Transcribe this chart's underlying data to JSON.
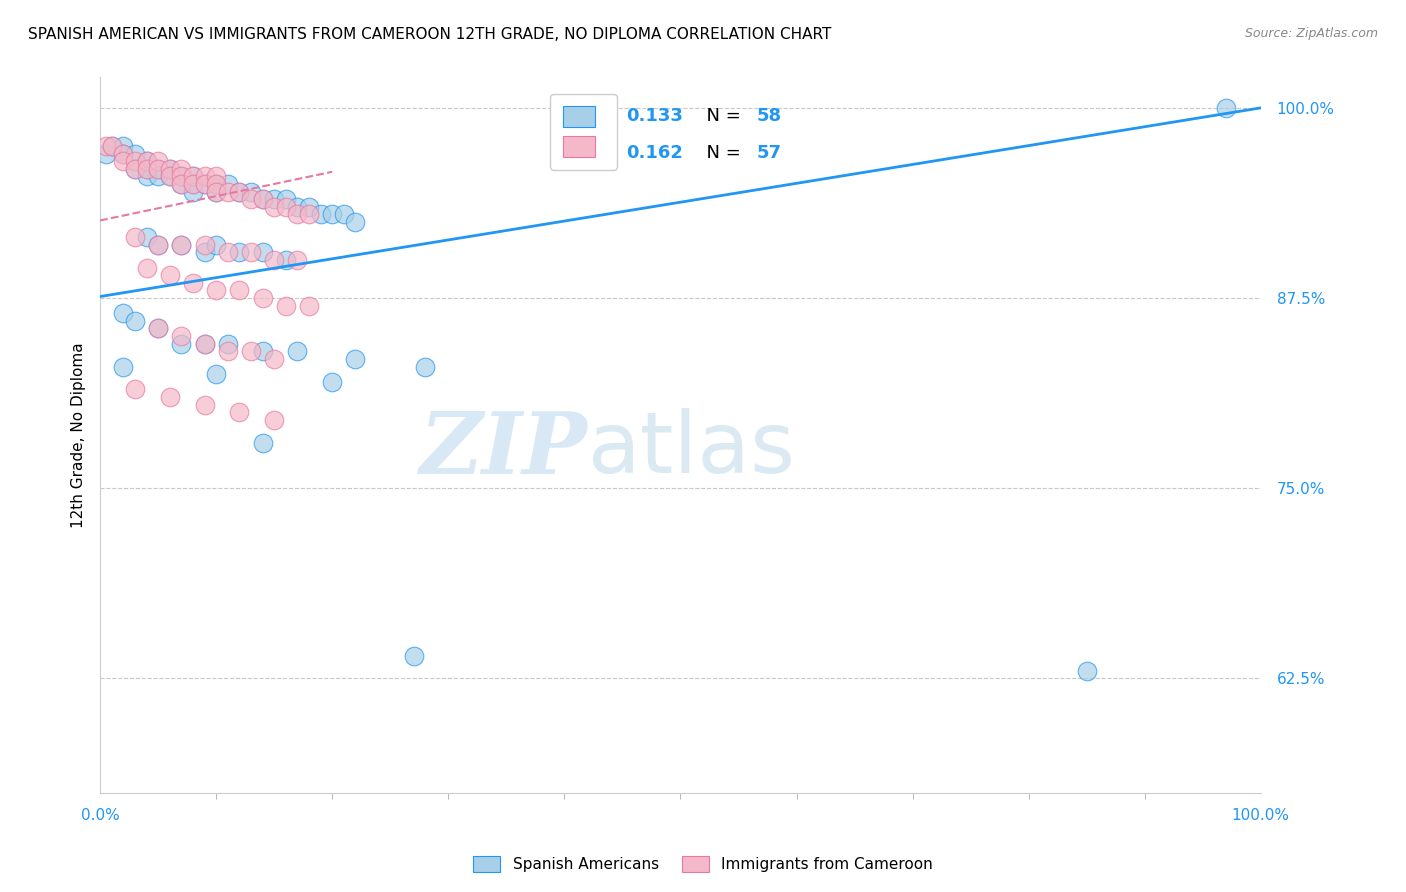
{
  "title": "SPANISH AMERICAN VS IMMIGRANTS FROM CAMEROON 12TH GRADE, NO DIPLOMA CORRELATION CHART",
  "source": "Source: ZipAtlas.com",
  "ylabel": "12th Grade, No Diploma",
  "legend_r1": "R = 0.133",
  "legend_n1": "N = 58",
  "legend_r2": "R = 0.162",
  "legend_n2": "N = 57",
  "xmin": 0.0,
  "xmax": 1.0,
  "ymin": 0.55,
  "ymax": 1.02,
  "yticks": [
    0.625,
    0.75,
    0.875,
    1.0
  ],
  "ytick_labels": [
    "62.5%",
    "75.0%",
    "87.5%",
    "100.0%"
  ],
  "color_blue": "#a8cfe8",
  "color_pink": "#f4b8c8",
  "color_blue_line": "#2196F3",
  "color_pink_line": "#e878a0",
  "color_axis_labels": "#2196F3",
  "watermark_zip": "ZIP",
  "watermark_atlas": "atlas",
  "blue_scatter_x": [
    0.005,
    0.01,
    0.02,
    0.02,
    0.03,
    0.03,
    0.04,
    0.04,
    0.04,
    0.05,
    0.05,
    0.06,
    0.06,
    0.07,
    0.07,
    0.08,
    0.08,
    0.08,
    0.09,
    0.1,
    0.1,
    0.11,
    0.12,
    0.13,
    0.14,
    0.15,
    0.16,
    0.17,
    0.18,
    0.19,
    0.2,
    0.21,
    0.22,
    0.04,
    0.05,
    0.07,
    0.09,
    0.1,
    0.12,
    0.14,
    0.16,
    0.02,
    0.03,
    0.05,
    0.07,
    0.09,
    0.11,
    0.14,
    0.17,
    0.22,
    0.28,
    0.02,
    0.1,
    0.2,
    0.97,
    0.14,
    0.27,
    0.85
  ],
  "blue_scatter_y": [
    0.97,
    0.975,
    0.975,
    0.97,
    0.97,
    0.96,
    0.965,
    0.96,
    0.955,
    0.96,
    0.955,
    0.96,
    0.955,
    0.955,
    0.95,
    0.955,
    0.95,
    0.945,
    0.95,
    0.95,
    0.945,
    0.95,
    0.945,
    0.945,
    0.94,
    0.94,
    0.94,
    0.935,
    0.935,
    0.93,
    0.93,
    0.93,
    0.925,
    0.915,
    0.91,
    0.91,
    0.905,
    0.91,
    0.905,
    0.905,
    0.9,
    0.865,
    0.86,
    0.855,
    0.845,
    0.845,
    0.845,
    0.84,
    0.84,
    0.835,
    0.83,
    0.83,
    0.825,
    0.82,
    1.0,
    0.78,
    0.64,
    0.63
  ],
  "pink_scatter_x": [
    0.005,
    0.01,
    0.02,
    0.02,
    0.03,
    0.03,
    0.04,
    0.04,
    0.05,
    0.05,
    0.06,
    0.06,
    0.07,
    0.07,
    0.07,
    0.08,
    0.08,
    0.09,
    0.09,
    0.1,
    0.1,
    0.1,
    0.11,
    0.12,
    0.13,
    0.14,
    0.15,
    0.16,
    0.17,
    0.18,
    0.03,
    0.05,
    0.07,
    0.09,
    0.11,
    0.13,
    0.15,
    0.17,
    0.04,
    0.06,
    0.08,
    0.1,
    0.12,
    0.14,
    0.16,
    0.18,
    0.05,
    0.07,
    0.09,
    0.11,
    0.13,
    0.15,
    0.03,
    0.06,
    0.09,
    0.12,
    0.15
  ],
  "pink_scatter_y": [
    0.975,
    0.975,
    0.97,
    0.965,
    0.965,
    0.96,
    0.965,
    0.96,
    0.965,
    0.96,
    0.96,
    0.955,
    0.96,
    0.955,
    0.95,
    0.955,
    0.95,
    0.955,
    0.95,
    0.955,
    0.95,
    0.945,
    0.945,
    0.945,
    0.94,
    0.94,
    0.935,
    0.935,
    0.93,
    0.93,
    0.915,
    0.91,
    0.91,
    0.91,
    0.905,
    0.905,
    0.9,
    0.9,
    0.895,
    0.89,
    0.885,
    0.88,
    0.88,
    0.875,
    0.87,
    0.87,
    0.855,
    0.85,
    0.845,
    0.84,
    0.84,
    0.835,
    0.815,
    0.81,
    0.805,
    0.8,
    0.795
  ],
  "blue_line_x0": 0.0,
  "blue_line_x1": 1.0,
  "blue_line_y0": 0.876,
  "blue_line_y1": 1.0,
  "pink_line_x0": 0.0,
  "pink_line_x1": 0.2,
  "pink_line_y0": 0.926,
  "pink_line_y1": 0.958,
  "background_color": "#ffffff",
  "grid_color": "#c8c8c8",
  "title_fontsize": 11,
  "axis_label_fontsize": 11,
  "tick_fontsize": 11
}
